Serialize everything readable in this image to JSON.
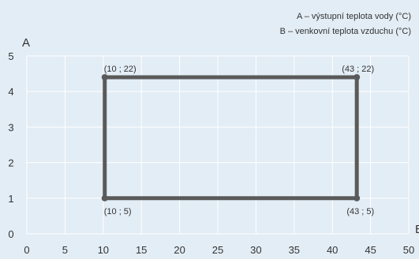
{
  "chart_data": {
    "type": "line",
    "legend": {
      "placement": "top-right",
      "entries": [
        "A – výstupní teplota vody (°C)",
        "B – venkovní teplota vzduchu (°C)"
      ]
    },
    "y_axis_letter": "A",
    "x_axis_letter": "B",
    "x_ticks": [
      "0",
      "5",
      "10",
      "15",
      "20",
      "25",
      "30",
      "35",
      "40",
      "45",
      "50"
    ],
    "y_ticks": [
      "0",
      "1",
      "2",
      "3",
      "4",
      "5"
    ],
    "xlim": [
      0,
      50
    ],
    "ylim": [
      0,
      5
    ],
    "grid": true,
    "series": [
      {
        "color": "#5a5a5a",
        "points": [
          {
            "x": 10.2,
            "y": 1,
            "label": "(10 ; 5)"
          },
          {
            "x": 10.2,
            "y": 4.4,
            "label": "(10 ; 22)"
          },
          {
            "x": 43.2,
            "y": 4.4,
            "label": "(43 ; 22)"
          },
          {
            "x": 43.2,
            "y": 1,
            "label": "(43 ; 5)"
          }
        ],
        "closed": true
      }
    ]
  }
}
